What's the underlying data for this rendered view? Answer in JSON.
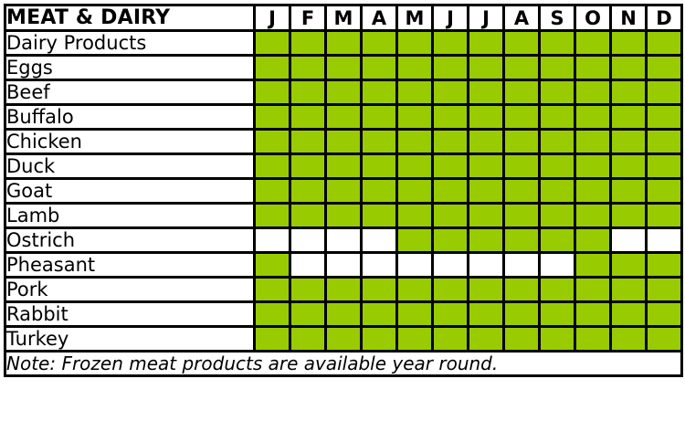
{
  "header": {
    "title": "MEAT & DAIRY",
    "months": [
      "J",
      "F",
      "M",
      "A",
      "M",
      "J",
      "J",
      "A",
      "S",
      "O",
      "N",
      "D"
    ]
  },
  "availability_color": "#99cc00",
  "unavailable_color": "#ffffff",
  "rows": [
    {
      "name": "Dairy Products",
      "months": [
        1,
        1,
        1,
        1,
        1,
        1,
        1,
        1,
        1,
        1,
        1,
        1
      ]
    },
    {
      "name": "Eggs",
      "months": [
        1,
        1,
        1,
        1,
        1,
        1,
        1,
        1,
        1,
        1,
        1,
        1
      ]
    },
    {
      "name": "Beef",
      "months": [
        1,
        1,
        1,
        1,
        1,
        1,
        1,
        1,
        1,
        1,
        1,
        1
      ]
    },
    {
      "name": "Buffalo",
      "months": [
        1,
        1,
        1,
        1,
        1,
        1,
        1,
        1,
        1,
        1,
        1,
        1
      ]
    },
    {
      "name": "Chicken",
      "months": [
        1,
        1,
        1,
        1,
        1,
        1,
        1,
        1,
        1,
        1,
        1,
        1
      ]
    },
    {
      "name": "Duck",
      "months": [
        1,
        1,
        1,
        1,
        1,
        1,
        1,
        1,
        1,
        1,
        1,
        1
      ]
    },
    {
      "name": "Goat",
      "months": [
        1,
        1,
        1,
        1,
        1,
        1,
        1,
        1,
        1,
        1,
        1,
        1
      ]
    },
    {
      "name": "Lamb",
      "months": [
        1,
        1,
        1,
        1,
        1,
        1,
        1,
        1,
        1,
        1,
        1,
        1
      ]
    },
    {
      "name": "Ostrich",
      "months": [
        0,
        0,
        0,
        0,
        1,
        1,
        1,
        1,
        1,
        1,
        0,
        0
      ]
    },
    {
      "name": "Pheasant",
      "months": [
        1,
        0,
        0,
        0,
        0,
        0,
        0,
        0,
        0,
        1,
        1,
        1
      ]
    },
    {
      "name": "Pork",
      "months": [
        1,
        1,
        1,
        1,
        1,
        1,
        1,
        1,
        1,
        1,
        1,
        1
      ]
    },
    {
      "name": "Rabbit",
      "months": [
        1,
        1,
        1,
        1,
        1,
        1,
        1,
        1,
        1,
        1,
        1,
        1
      ]
    },
    {
      "name": "Turkey",
      "months": [
        1,
        1,
        1,
        1,
        1,
        1,
        1,
        1,
        1,
        1,
        1,
        1
      ]
    }
  ],
  "note": "Note: Frozen meat products are available year round."
}
